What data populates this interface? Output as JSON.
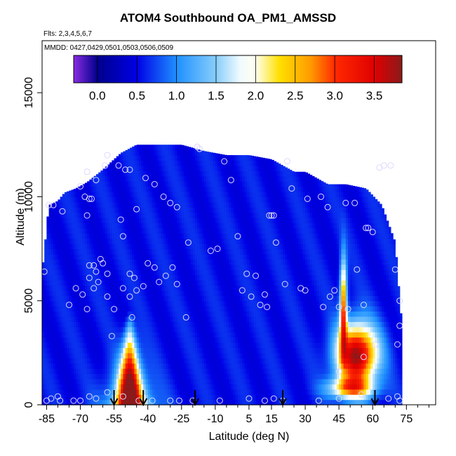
{
  "chart_data": {
    "type": "heatmap",
    "title": "ATOM4 Southbound OA_PM1_AMSSD",
    "flights": "Flts: 2,3,4,5,6,7",
    "mmdd": "MMDD: 0427,0429,0501,0503,0506,0509",
    "xlabel": "Latitude (deg N)",
    "ylabel": "Altitude (m)",
    "xlim": [
      -87,
      88
    ],
    "ylim": [
      0,
      17500
    ],
    "x_ticks": [
      -85,
      -70,
      -55,
      -40,
      -25,
      -10,
      5,
      15,
      30,
      45,
      60,
      75
    ],
    "x_minor_ticks": [
      -80,
      -75,
      -65,
      -60,
      -50,
      -45,
      -35,
      -30,
      -20,
      -15,
      -5,
      0,
      10,
      20,
      25,
      35,
      40,
      50,
      55,
      65,
      70,
      80,
      85
    ],
    "y_ticks": [
      0,
      5000,
      10000,
      15000
    ],
    "colorbar": {
      "range": [
        -0.3,
        3.85
      ],
      "ticks": [
        "0.0",
        "0.5",
        "1.0",
        "1.5",
        "2.0",
        "2.5",
        "3.0",
        "3.5"
      ],
      "tick_values": [
        0,
        0.5,
        1,
        1.5,
        2,
        2.5,
        3,
        3.5
      ],
      "stops": [
        {
          "v": -0.3,
          "c": "#8b2be2"
        },
        {
          "v": 0.0,
          "c": "#00008b"
        },
        {
          "v": 0.5,
          "c": "#0000e6"
        },
        {
          "v": 1.0,
          "c": "#1e90ff"
        },
        {
          "v": 1.5,
          "c": "#87cefa"
        },
        {
          "v": 1.8,
          "c": "#f0faff"
        },
        {
          "v": 2.0,
          "c": "#fffff0"
        },
        {
          "v": 2.3,
          "c": "#ffe000"
        },
        {
          "v": 2.7,
          "c": "#ff9a00"
        },
        {
          "v": 3.0,
          "c": "#ff2a00"
        },
        {
          "v": 3.5,
          "c": "#e00000"
        },
        {
          "v": 3.85,
          "c": "#8b1a1a"
        }
      ]
    },
    "background_value": 0.55,
    "coverage_envelope": {
      "lat": [
        -87,
        -84,
        -80,
        -77,
        -72,
        -67,
        -60,
        -52,
        -45,
        -40,
        -33,
        -25,
        -15,
        -5,
        5,
        15,
        25,
        30,
        40,
        48,
        57,
        64,
        70,
        72,
        73
      ],
      "top_alt": [
        6300,
        9600,
        9800,
        10200,
        10400,
        10700,
        11300,
        12100,
        12500,
        12500,
        12500,
        12500,
        12200,
        12000,
        12000,
        11800,
        11200,
        11200,
        10600,
        10600,
        10400,
        9600,
        7800,
        5000,
        3800
      ]
    },
    "enhancements": [
      {
        "name": "southern-plume",
        "lat": -48,
        "alt": 0,
        "peak": 3.5,
        "lat_sigma_base": 4.5,
        "alt_top": 4500
      },
      {
        "name": "northern-plume",
        "lat": 53,
        "alt": 2400,
        "peak": 3.3,
        "lat_sigma": 9,
        "alt_sigma": 1500
      },
      {
        "name": "northern-column",
        "lat": 47,
        "alt": 4800,
        "peak": 2.4,
        "lat_sigma": 1.5,
        "alt_sigma": 2200
      },
      {
        "name": "north-low-band",
        "lat": 50,
        "alt": 800,
        "peak": 1.7,
        "lat_sigma": 10,
        "alt_sigma": 500
      }
    ],
    "sample_points": [
      [
        -72,
        5600
      ],
      [
        -75,
        4800
      ],
      [
        -69,
        5300
      ],
      [
        -67,
        4600
      ],
      [
        -66,
        6100
      ],
      [
        -66,
        6700
      ],
      [
        -64,
        6700
      ],
      [
        -64,
        5600
      ],
      [
        -63,
        6400
      ],
      [
        -62,
        5900
      ],
      [
        -61,
        7000
      ],
      [
        -60,
        6800
      ],
      [
        -58,
        6300
      ],
      [
        -58,
        5200
      ],
      [
        -55,
        4600
      ],
      [
        -56,
        3300
      ],
      [
        -47,
        4200
      ],
      [
        -46,
        6100
      ],
      [
        -45,
        5500
      ],
      [
        -42,
        5700
      ],
      [
        -40,
        6800
      ],
      [
        -37,
        6600
      ],
      [
        -35,
        5900
      ],
      [
        -32,
        6200
      ],
      [
        -29,
        6600
      ],
      [
        -27,
        5800
      ],
      [
        -23,
        4200
      ],
      [
        -22,
        7800
      ],
      [
        -18,
        12400
      ],
      [
        -17,
        12300
      ],
      [
        -12,
        7400
      ],
      [
        -9,
        7500
      ],
      [
        -6,
        11700
      ],
      [
        -3,
        10800
      ],
      [
        0,
        8100
      ],
      [
        2,
        5500
      ],
      [
        4,
        6300
      ],
      [
        6,
        5200
      ],
      [
        8,
        6200
      ],
      [
        10,
        4800
      ],
      [
        12,
        5300
      ],
      [
        13,
        4700
      ],
      [
        14,
        9100
      ],
      [
        15,
        9100
      ],
      [
        16,
        9100
      ],
      [
        17,
        7800
      ],
      [
        21,
        5800
      ],
      [
        22,
        11700
      ],
      [
        24,
        10400
      ],
      [
        28,
        5600
      ],
      [
        30,
        5500
      ],
      [
        31,
        9900
      ],
      [
        37,
        10000
      ],
      [
        38,
        4700
      ],
      [
        40,
        9500
      ],
      [
        41,
        5200
      ],
      [
        43,
        5500
      ],
      [
        45,
        4700
      ],
      [
        48,
        9700
      ],
      [
        49,
        4600
      ],
      [
        52,
        9700
      ],
      [
        53,
        6500
      ],
      [
        56,
        4800
      ],
      [
        57,
        8500
      ],
      [
        58,
        8500
      ],
      [
        60,
        8300
      ],
      [
        63,
        11400
      ],
      [
        65,
        11500
      ],
      [
        68,
        11500
      ],
      [
        70,
        6500
      ],
      [
        72,
        5000
      ],
      [
        72,
        3800
      ],
      [
        71,
        2900
      ],
      [
        -84,
        9600
      ],
      [
        -82,
        9600
      ],
      [
        -78,
        9300
      ],
      [
        -70,
        10500
      ],
      [
        -68,
        10000
      ],
      [
        -66,
        9900
      ],
      [
        -65,
        9900
      ],
      [
        -67,
        11200
      ],
      [
        -63,
        10800
      ],
      [
        -59,
        11500
      ],
      [
        -58,
        12000
      ],
      [
        -53,
        11500
      ],
      [
        -50,
        11300
      ],
      [
        -48,
        11300
      ],
      [
        -41,
        10900
      ],
      [
        -37,
        10600
      ],
      [
        -33,
        10000
      ],
      [
        -30,
        9700
      ],
      [
        -27,
        9500
      ],
      [
        -45,
        9400
      ],
      [
        -67,
        9100
      ],
      [
        -52,
        8900
      ],
      [
        -51,
        8100
      ],
      [
        -48,
        5200
      ],
      [
        -51,
        5600
      ],
      [
        -48,
        6300
      ],
      [
        -58,
        600
      ],
      [
        -63,
        300
      ],
      [
        -66,
        400
      ],
      [
        -70,
        200
      ],
      [
        -73,
        200
      ],
      [
        -79,
        200
      ],
      [
        -80,
        400
      ],
      [
        -83,
        300
      ],
      [
        -85,
        200
      ],
      [
        -51,
        400
      ],
      [
        -44,
        200
      ],
      [
        -38,
        200
      ],
      [
        -30,
        200
      ],
      [
        -26,
        200
      ],
      [
        -20,
        200
      ],
      [
        -8,
        200
      ],
      [
        5,
        300
      ],
      [
        12,
        200
      ],
      [
        16,
        300
      ],
      [
        20,
        200
      ],
      [
        36,
        200
      ],
      [
        45,
        300
      ],
      [
        55,
        500
      ],
      [
        67,
        300
      ],
      [
        71,
        400
      ],
      [
        45,
        1600
      ],
      [
        61,
        2900
      ],
      [
        56,
        2300
      ],
      [
        72,
        200
      ],
      [
        -86,
        6400
      ]
    ],
    "arrow_lats": [
      -55,
      -42,
      -19,
      20,
      61
    ]
  }
}
